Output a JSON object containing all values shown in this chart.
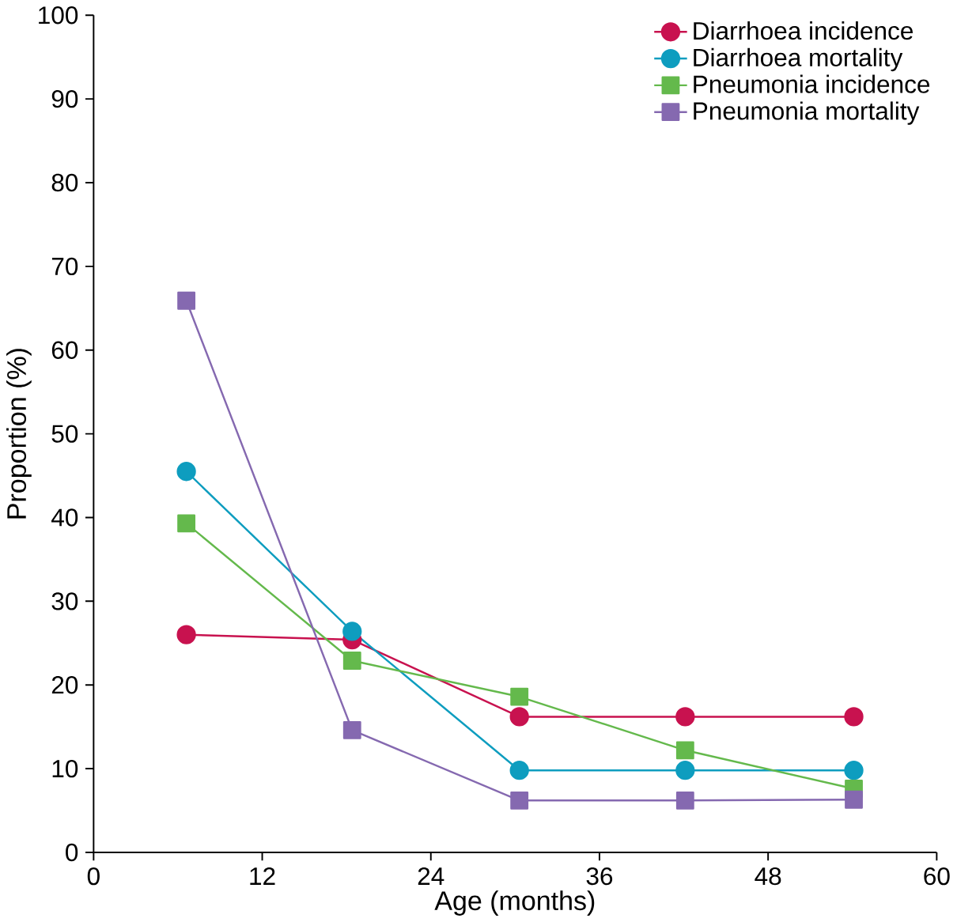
{
  "chart_data": {
    "type": "line",
    "xlabel": "Age (months)",
    "ylabel": "Proportion (%)",
    "x": [
      6.6,
      18.4,
      30.3,
      42.1,
      54.1
    ],
    "xlim": [
      0,
      60
    ],
    "xticks": [
      0,
      12,
      24,
      36,
      48,
      60
    ],
    "ylim": [
      0,
      100
    ],
    "yticks": [
      0,
      10,
      20,
      30,
      40,
      50,
      60,
      70,
      80,
      90,
      100
    ],
    "grid": false,
    "legend": "top right",
    "series": [
      {
        "name": "Diarrhoea incidence",
        "color": "#c8124f",
        "marker": "circle",
        "values": [
          26.0,
          25.4,
          16.2,
          16.2,
          16.2
        ]
      },
      {
        "name": "Diarrhoea mortality",
        "color": "#0e9dbf",
        "marker": "circle",
        "values": [
          45.5,
          26.4,
          9.8,
          9.8,
          9.8
        ]
      },
      {
        "name": "Pneumonia incidence",
        "color": "#64b94c",
        "marker": "square",
        "values": [
          39.3,
          22.9,
          18.6,
          12.2,
          7.6
        ]
      },
      {
        "name": "Pneumonia mortality",
        "color": "#8569b0",
        "marker": "square",
        "values": [
          65.9,
          14.6,
          6.2,
          6.2,
          6.3
        ]
      }
    ]
  }
}
